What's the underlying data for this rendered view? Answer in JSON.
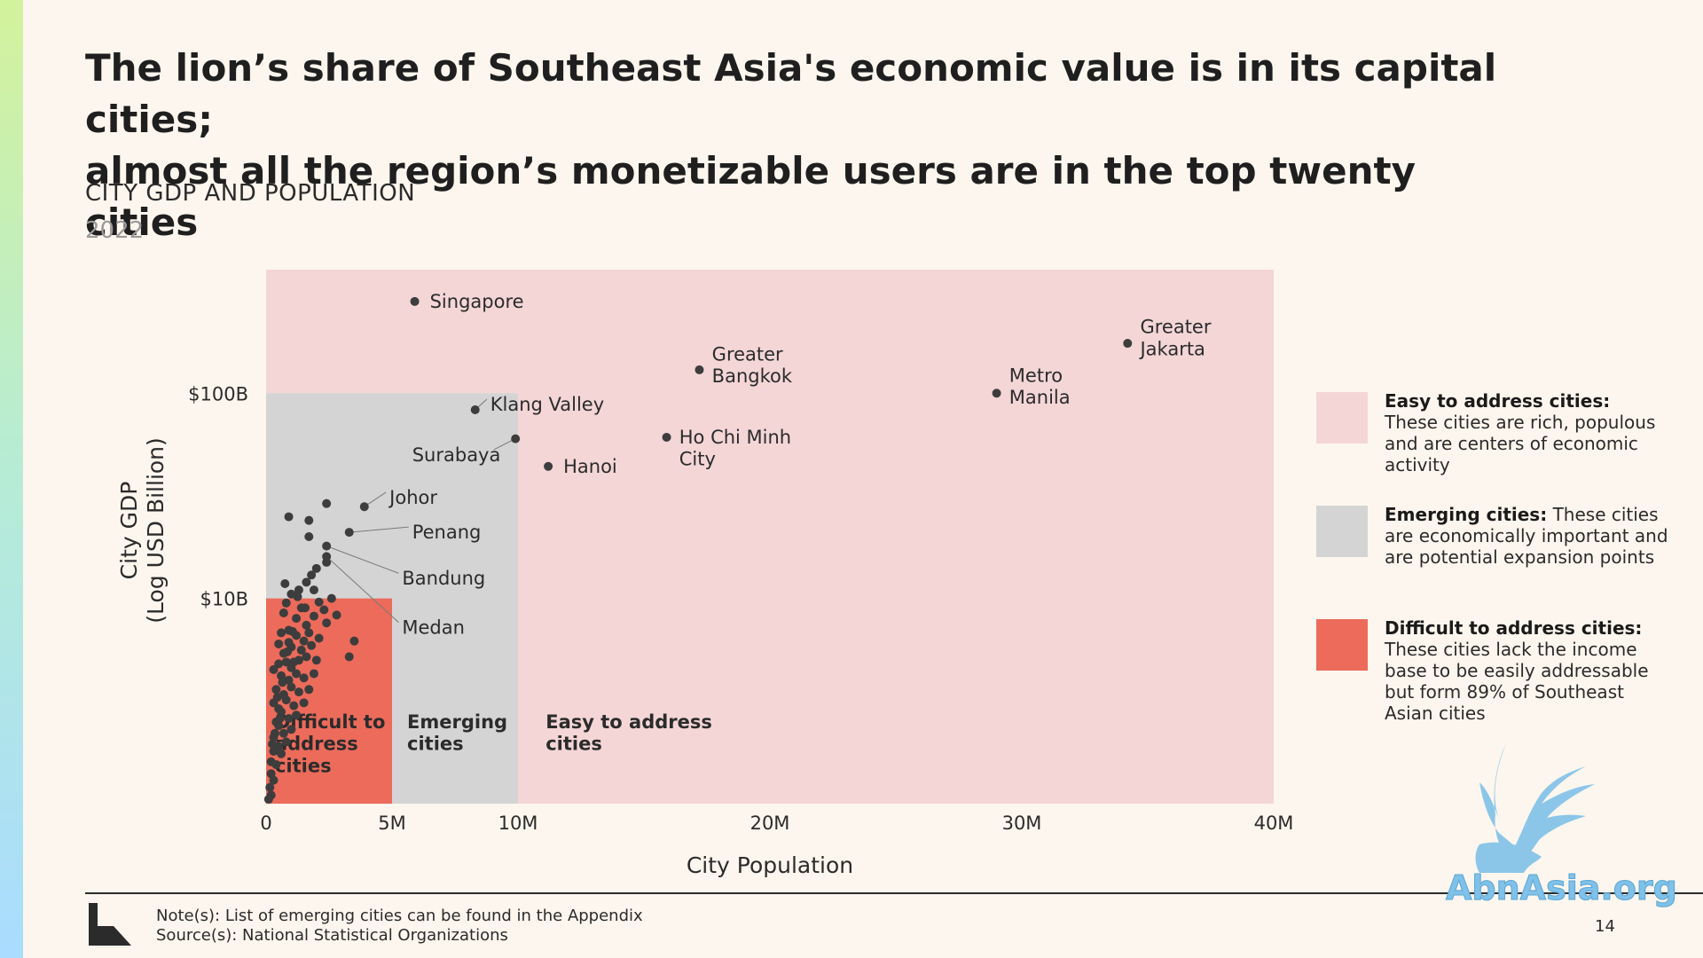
{
  "title": {
    "line1": "The lion’s share of Southeast Asia's economic value is in its capital cities;",
    "line2": "almost all the region’s monetizable users are in the top twenty cities"
  },
  "subtitle": "CITY GDP AND POPULATION",
  "year": "2022",
  "chart_data": {
    "type": "scatter",
    "xlabel": "City Population",
    "ylabel": [
      "City GDP",
      "(Log USD Billion)"
    ],
    "x_unit": "million people",
    "y_unit": "USD billion (log scale)",
    "xlim": [
      0,
      40
    ],
    "ylim": [
      1,
      400
    ],
    "y_log": true,
    "x_ticks": [
      0,
      5,
      10,
      20,
      30,
      40
    ],
    "x_tick_labels": [
      "0",
      "5M",
      "10M",
      "20M",
      "30M",
      "40M"
    ],
    "y_ticks": [
      10,
      100
    ],
    "y_tick_labels": [
      "$10B",
      "$100B"
    ],
    "regions": [
      {
        "key": "easy",
        "label": "Easy to address cities",
        "x": [
          0,
          40
        ],
        "y": [
          1,
          400
        ],
        "color": "#f4d6d7"
      },
      {
        "key": "emerging",
        "label": "Emerging cities",
        "x": [
          0,
          10
        ],
        "y": [
          1,
          100
        ],
        "color": "#d4d4d4"
      },
      {
        "key": "difficult",
        "label": "Difficult to address cities",
        "x": [
          0,
          5
        ],
        "y": [
          1,
          10
        ],
        "color": "#ec6b5b"
      }
    ],
    "region_labels": [
      {
        "key": "difficult",
        "lines": [
          "Difficult to",
          "address",
          "cities"
        ],
        "x": 0.35,
        "y": 1.6
      },
      {
        "key": "emerging",
        "lines": [
          "Emerging",
          "cities"
        ],
        "x": 5.6,
        "y": 1.6
      },
      {
        "key": "easy",
        "lines": [
          "Easy to address",
          "cities"
        ],
        "x": 11.1,
        "y": 1.6
      }
    ],
    "labeled_points": [
      {
        "name": "Singapore",
        "lines": [
          "Singapore"
        ],
        "x": 5.9,
        "y": 280,
        "lx": 6.5,
        "ly": 280
      },
      {
        "name": "Greater Jakarta",
        "lines": [
          "Greater",
          "Jakarta"
        ],
        "x": 34.2,
        "y": 175,
        "lx": 34.7,
        "ly": 210
      },
      {
        "name": "Greater Bangkok",
        "lines": [
          "Greater",
          "Bangkok"
        ],
        "x": 17.2,
        "y": 130,
        "lx": 17.7,
        "ly": 155
      },
      {
        "name": "Metro Manila",
        "lines": [
          "Metro",
          "Manila"
        ],
        "x": 29.0,
        "y": 100,
        "lx": 29.5,
        "ly": 122
      },
      {
        "name": "Klang Valley",
        "lines": [
          "Klang Valley"
        ],
        "x": 8.3,
        "y": 83,
        "lx": 8.9,
        "ly": 88,
        "leader": true
      },
      {
        "name": "Ho Chi Minh City",
        "lines": [
          "Ho Chi Minh",
          "City"
        ],
        "x": 15.9,
        "y": 61,
        "lx": 16.4,
        "ly": 61
      },
      {
        "name": "Hanoi",
        "lines": [
          "Hanoi"
        ],
        "x": 11.2,
        "y": 44,
        "lx": 11.8,
        "ly": 44
      },
      {
        "name": "Surabaya",
        "lines": [
          "Surabaya"
        ],
        "x": 9.9,
        "y": 60,
        "lx": 5.8,
        "ly": 50,
        "leader": true
      },
      {
        "name": "Johor",
        "lines": [
          "Johor"
        ],
        "x": 3.9,
        "y": 28,
        "lx": 4.9,
        "ly": 31,
        "leader": true
      },
      {
        "name": "Penang",
        "lines": [
          "Penang"
        ],
        "x": 3.3,
        "y": 21,
        "lx": 5.8,
        "ly": 21,
        "leader": true
      },
      {
        "name": "Bandung",
        "lines": [
          "Bandung"
        ],
        "x": 2.4,
        "y": 18,
        "lx": 5.4,
        "ly": 12.5,
        "leader": true
      },
      {
        "name": "Medan",
        "lines": [
          "Medan"
        ],
        "x": 2.4,
        "y": 16,
        "lx": 5.4,
        "ly": 7.2,
        "leader": true
      }
    ],
    "unlabeled_points": [
      [
        0.9,
        25
      ],
      [
        1.7,
        24
      ],
      [
        2.4,
        29
      ],
      [
        1.7,
        20
      ],
      [
        2.4,
        15
      ],
      [
        2.0,
        14
      ],
      [
        1.8,
        13
      ],
      [
        1.6,
        12
      ],
      [
        1.3,
        11
      ],
      [
        1.0,
        10.5
      ],
      [
        1.9,
        11
      ],
      [
        2.1,
        9.6
      ],
      [
        2.6,
        10
      ],
      [
        1.4,
        9
      ],
      [
        0.8,
        9.5
      ],
      [
        0.7,
        8.5
      ],
      [
        3.5,
        6.2
      ],
      [
        3.3,
        5.2
      ],
      [
        2.4,
        7.6
      ],
      [
        1.9,
        8.2
      ],
      [
        1.6,
        7.4
      ],
      [
        1.2,
        8.0
      ],
      [
        0.9,
        7.0
      ],
      [
        0.6,
        6.8
      ],
      [
        2.1,
        6.4
      ],
      [
        1.8,
        5.9
      ],
      [
        1.5,
        6.2
      ],
      [
        1.2,
        6.6
      ],
      [
        1.0,
        5.8
      ],
      [
        0.7,
        5.4
      ],
      [
        0.5,
        6.0
      ],
      [
        2.0,
        5.0
      ],
      [
        1.6,
        5.2
      ],
      [
        1.3,
        5.0
      ],
      [
        1.0,
        4.6
      ],
      [
        0.8,
        4.9
      ],
      [
        0.5,
        4.8
      ],
      [
        1.9,
        4.3
      ],
      [
        1.5,
        4.1
      ],
      [
        1.2,
        4.3
      ],
      [
        0.9,
        4.0
      ],
      [
        0.6,
        4.2
      ],
      [
        0.3,
        4.5
      ],
      [
        1.7,
        3.6
      ],
      [
        1.3,
        3.5
      ],
      [
        1.0,
        3.7
      ],
      [
        0.7,
        3.4
      ],
      [
        0.4,
        3.6
      ],
      [
        1.5,
        3.1
      ],
      [
        1.1,
        3.0
      ],
      [
        0.8,
        3.2
      ],
      [
        0.5,
        2.9
      ],
      [
        0.3,
        3.1
      ],
      [
        1.2,
        2.7
      ],
      [
        0.9,
        2.6
      ],
      [
        0.6,
        2.8
      ],
      [
        0.4,
        2.5
      ],
      [
        1.0,
        2.3
      ],
      [
        0.7,
        2.2
      ],
      [
        0.5,
        2.4
      ],
      [
        0.3,
        2.1
      ],
      [
        0.8,
        2.0
      ],
      [
        0.5,
        1.9
      ],
      [
        0.3,
        1.8
      ],
      [
        0.6,
        1.75
      ],
      [
        0.2,
        1.6
      ],
      [
        0.4,
        1.55
      ],
      [
        0.2,
        1.4
      ],
      [
        0.3,
        1.3
      ],
      [
        0.15,
        1.2
      ],
      [
        0.2,
        1.1
      ],
      [
        0.1,
        1.05
      ],
      [
        0.55,
        2.6
      ],
      [
        1.1,
        4.9
      ],
      [
        1.4,
        5.6
      ],
      [
        0.9,
        6.1
      ],
      [
        1.7,
        6.8
      ],
      [
        0.35,
        2.2
      ],
      [
        0.25,
        1.95
      ],
      [
        0.45,
        3.3
      ],
      [
        1.55,
        9.0
      ],
      [
        1.25,
        10.2
      ],
      [
        0.75,
        11.8
      ],
      [
        2.3,
        8.8
      ],
      [
        2.8,
        8.3
      ],
      [
        0.65,
        3.9
      ],
      [
        0.85,
        5.5
      ],
      [
        1.05,
        6.9
      ]
    ]
  },
  "legend": [
    {
      "key": "easy",
      "title": "Easy to address cities:",
      "text": "These cities are rich, populous and are centers of economic activity",
      "color": "#f4d6d7"
    },
    {
      "key": "emerging",
      "title": "Emerging cities:",
      "text": "These cities are economically important and are potential expansion points",
      "color": "#d4d4d4"
    },
    {
      "key": "difficult",
      "title": "Difficult to address cities:",
      "text": "These cities lack the income base to be easily addressable but form 89% of Southeast Asian cities",
      "color": "#ec6b5b"
    }
  ],
  "footer": {
    "note": "Note(s): List of emerging cities can be found in the Appendix",
    "source": "Source(s): National Statistical Organizations",
    "page": "14"
  },
  "watermark": "AbnAsia.org",
  "colors": {
    "point": "#3d3d3d",
    "text": "#2b2b2b",
    "leader": "#7a7a7a"
  }
}
